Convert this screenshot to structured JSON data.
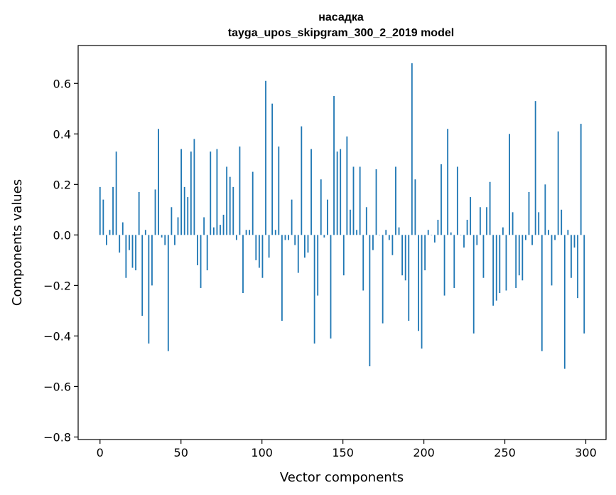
{
  "chart_data": {
    "type": "bar",
    "title": "насадка",
    "subtitle": "tayga_upos_skipgram_300_2_2019 model",
    "xlabel": "Vector components",
    "ylabel": "Components values",
    "xlim": [
      -13.5,
      312.5
    ],
    "ylim": [
      -0.81,
      0.75
    ],
    "xticks": [
      0,
      50,
      100,
      150,
      200,
      250,
      300
    ],
    "yticks": [
      -0.8,
      -0.6,
      -0.4,
      -0.2,
      0.0,
      0.2,
      0.4,
      0.6
    ],
    "ytick_labels": [
      "−0.8",
      "−0.6",
      "−0.4",
      "−0.2",
      "0.0",
      "0.2",
      "0.4",
      "0.6"
    ],
    "bar_color": "#1f77b4",
    "grid": false,
    "values": [
      0.19,
      0.14,
      -0.04,
      0.02,
      0.19,
      0.33,
      -0.07,
      0.05,
      -0.17,
      -0.06,
      -0.13,
      -0.14,
      0.17,
      -0.32,
      0.02,
      -0.43,
      -0.2,
      0.18,
      0.42,
      -0.01,
      -0.04,
      -0.46,
      0.11,
      -0.04,
      0.07,
      0.34,
      0.19,
      0.15,
      0.33,
      0.38,
      -0.12,
      -0.21,
      0.07,
      -0.14,
      0.33,
      0.03,
      0.34,
      0.04,
      0.08,
      0.27,
      0.23,
      0.19,
      -0.02,
      0.35,
      -0.23,
      0.02,
      0.02,
      0.25,
      -0.1,
      -0.13,
      -0.17,
      0.61,
      -0.09,
      0.52,
      0.02,
      0.35,
      -0.34,
      -0.02,
      -0.02,
      0.14,
      -0.04,
      -0.15,
      0.43,
      -0.09,
      -0.07,
      0.34,
      -0.43,
      -0.24,
      0.22,
      -0.01,
      0.14,
      -0.41,
      0.55,
      0.33,
      0.34,
      -0.16,
      0.39,
      0.1,
      0.27,
      0.02,
      0.27,
      -0.22,
      0.11,
      -0.52,
      -0.06,
      0.26,
      0.0,
      -0.35,
      0.02,
      -0.02,
      -0.08,
      0.27,
      0.03,
      -0.16,
      -0.18,
      -0.34,
      0.68,
      0.22,
      -0.38,
      -0.45,
      -0.14,
      0.02,
      0.0,
      -0.03,
      0.06,
      0.28,
      -0.24,
      0.42,
      0.01,
      -0.21,
      0.27,
      0.0,
      -0.05,
      0.06,
      0.15,
      -0.39,
      -0.04,
      0.11,
      -0.17,
      0.11,
      0.21,
      -0.28,
      -0.26,
      -0.23,
      0.03,
      -0.22,
      0.4,
      0.09,
      -0.21,
      -0.16,
      -0.18,
      -0.02,
      0.17,
      -0.04,
      0.53,
      0.09,
      -0.46,
      0.2,
      0.02,
      -0.2,
      -0.02,
      0.41,
      0.1,
      -0.53,
      0.02,
      -0.17,
      -0.05,
      -0.25,
      0.44,
      -0.39
    ]
  }
}
